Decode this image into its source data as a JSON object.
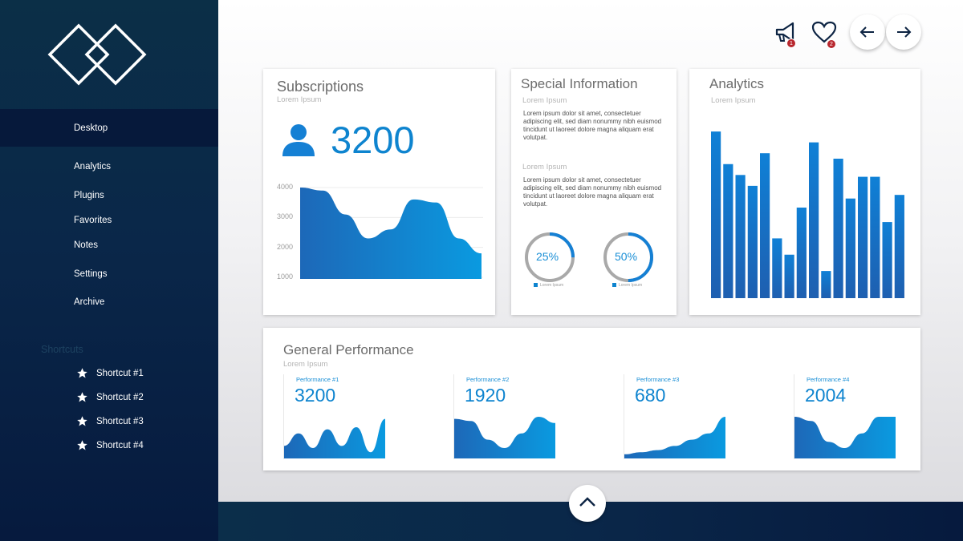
{
  "sidebar": {
    "items": [
      {
        "label": "Desktop",
        "active": true
      },
      {
        "label": "Analytics"
      },
      {
        "label": "Plugins"
      },
      {
        "label": "Favorites"
      },
      {
        "label": "Notes"
      },
      {
        "label": "Settings"
      },
      {
        "label": "Archive"
      }
    ],
    "shortcuts_title": "Shortcuts",
    "shortcuts": [
      "Shortcut #1",
      "Shortcut #2",
      "Shortcut #3",
      "Shortcut #4"
    ]
  },
  "header": {
    "notifications_badge": "1",
    "favorites_badge": "2",
    "icons": [
      "megaphone-icon",
      "heart-icon",
      "arrow-left-icon",
      "arrow-right-icon"
    ]
  },
  "subscriptions": {
    "title": "Subscriptions",
    "subtitle": "Lorem Ipsum",
    "value": "3200",
    "icon": "user-icon",
    "chart_data": {
      "type": "area",
      "yticks": [
        "4000",
        "3000",
        "2000",
        "1000"
      ],
      "ylim": [
        1000,
        4000
      ],
      "grid": true,
      "values": [
        4000,
        3900,
        3100,
        2300,
        2600,
        3600,
        3500,
        2300,
        1800
      ]
    }
  },
  "special": {
    "title": "Special Information",
    "sub1": "Lorem Ipsum",
    "text1": "Lorem ipsum dolor sit amet, consectetuer adipiscing elit, sed diam nonummy nibh euismod tincidunt ut laoreet dolore magna aliquam erat volutpat.",
    "sub2": "Lorem Ipsum",
    "text2": "Lorem ipsum dolor sit amet, consectetuer adipiscing elit, sed diam nonummy nibh euismod tincidunt ut laoreet dolore magna aliquam erat volutpat.",
    "donuts": [
      {
        "label": "25%",
        "value": 0.25,
        "legend": "Lorem Ipsum"
      },
      {
        "label": "50%",
        "value": 0.5,
        "legend": "Lorem Ipsum"
      }
    ]
  },
  "analytics": {
    "title": "Analytics",
    "subtitle": "Lorem Ipsum",
    "chart_data": {
      "type": "bar",
      "values": [
        92,
        74,
        68,
        62,
        80,
        33,
        24,
        50,
        86,
        15,
        77,
        55,
        67,
        67,
        42,
        57
      ],
      "ylim": [
        0,
        100
      ],
      "color": "#1580d4"
    }
  },
  "performance": {
    "title": "General Performance",
    "subtitle": "Lorem Ipsum",
    "items": [
      {
        "label": "Performance #1",
        "value": "3200",
        "shape": [
          0.3,
          0.6,
          0.25,
          0.7,
          0.3,
          0.75,
          0.15,
          0.95
        ]
      },
      {
        "label": "Performance #2",
        "value": "1920",
        "shape": [
          0.95,
          0.9,
          0.45,
          0.25,
          0.6,
          1.0,
          0.85
        ]
      },
      {
        "label": "Performance #3",
        "value": "680",
        "shape": [
          0.1,
          0.15,
          0.2,
          0.3,
          0.45,
          0.6,
          1.0
        ]
      },
      {
        "label": "Performance #4",
        "value": "2004",
        "shape": [
          1.0,
          0.9,
          0.4,
          0.25,
          0.6,
          1.0,
          1.0
        ]
      }
    ]
  },
  "colors": {
    "accent": "#0e84cf",
    "sidebar": "#0a2749",
    "badge": "#b8272e"
  }
}
